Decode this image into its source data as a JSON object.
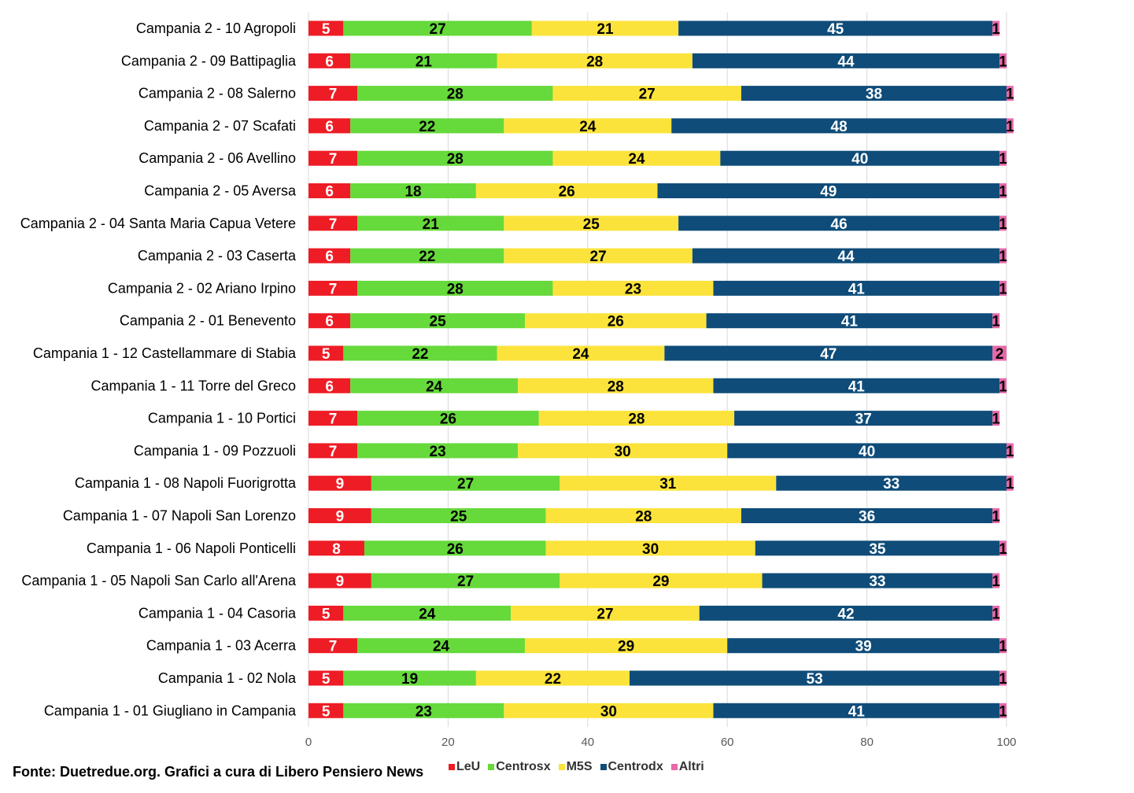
{
  "chart_data": {
    "type": "bar",
    "orientation": "horizontal",
    "stacked": true,
    "xlim": [
      0,
      100
    ],
    "xticks": [
      "0",
      "20",
      "40",
      "60",
      "80",
      "100"
    ],
    "grid": true,
    "legend_position": "bottom",
    "categories": [
      "Campania 2 - 10 Agropoli",
      "Campania 2 - 09 Battipaglia",
      "Campania 2 - 08 Salerno",
      "Campania 2 - 07 Scafati",
      "Campania 2 - 06 Avellino",
      "Campania 2 - 05 Aversa",
      "Campania 2 - 04 Santa Maria Capua Vetere",
      "Campania 2 - 03 Caserta",
      "Campania 2 - 02 Ariano Irpino",
      "Campania 2 - 01 Benevento",
      "Campania 1 - 12 Castellammare di Stabia",
      "Campania 1 - 11 Torre del Greco",
      "Campania 1 - 10 Portici",
      "Campania 1 - 09 Pozzuoli",
      "Campania 1 - 08 Napoli Fuorigrotta",
      "Campania 1 - 07 Napoli San Lorenzo",
      "Campania 1 - 06 Napoli Ponticelli",
      "Campania 1 - 05 Napoli San Carlo all'Arena",
      "Campania 1 - 04 Casoria",
      "Campania 1 - 03 Acerra",
      "Campania 1 - 02 Nola",
      "Campania 1 - 01 Giugliano in Campania"
    ],
    "series": [
      {
        "name": "LeU",
        "color": "#ee1c25",
        "label_color": "#ffffff",
        "values": [
          5,
          6,
          7,
          6,
          7,
          6,
          7,
          6,
          7,
          6,
          5,
          6,
          7,
          7,
          9,
          9,
          8,
          9,
          5,
          7,
          5,
          5
        ]
      },
      {
        "name": "Centrosx",
        "color": "#66d93b",
        "label_color": "#000000",
        "values": [
          27,
          21,
          28,
          22,
          28,
          18,
          21,
          22,
          28,
          25,
          22,
          24,
          26,
          23,
          27,
          25,
          26,
          27,
          24,
          24,
          19,
          23
        ]
      },
      {
        "name": "M5S",
        "color": "#fbe33b",
        "label_color": "#000000",
        "values": [
          21,
          28,
          27,
          24,
          24,
          26,
          25,
          27,
          23,
          26,
          24,
          28,
          28,
          30,
          31,
          28,
          30,
          29,
          27,
          29,
          22,
          30
        ]
      },
      {
        "name": "Centrodx",
        "color": "#0f4c79",
        "label_color": "#ffffff",
        "values": [
          45,
          44,
          38,
          48,
          40,
          49,
          46,
          44,
          41,
          41,
          47,
          41,
          37,
          40,
          33,
          36,
          35,
          33,
          42,
          39,
          53,
          41
        ]
      },
      {
        "name": "Altri",
        "color": "#e868a8",
        "label_color": "#000000",
        "values": [
          1,
          1,
          1,
          1,
          1,
          1,
          1,
          1,
          1,
          1,
          2,
          1,
          1,
          1,
          1,
          1,
          1,
          1,
          1,
          1,
          1,
          1
        ]
      }
    ]
  },
  "footer": {
    "source": "Fonte: Duetredue.org. Grafici a cura di Libero Pensiero News"
  }
}
